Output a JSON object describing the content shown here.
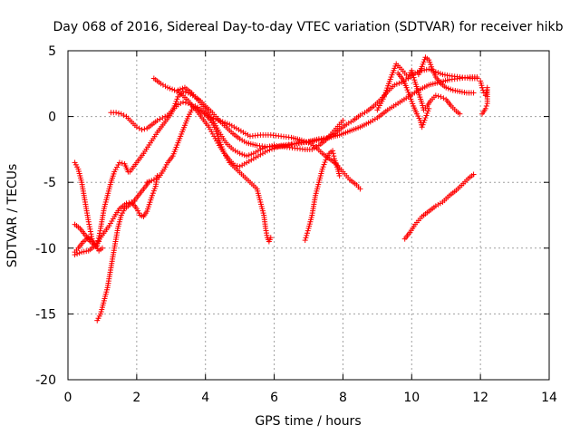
{
  "chart_data": {
    "type": "scatter",
    "title": "Day 068 of 2016, Sidereal Day-to-day VTEC variation (SDTVAR) for receiver hikb",
    "xlabel": "GPS time / hours",
    "ylabel": "SDTVAR / TECUs",
    "xlim": [
      0,
      14
    ],
    "ylim": [
      -20,
      5
    ],
    "xticks": [
      0,
      2,
      4,
      6,
      8,
      10,
      12,
      14
    ],
    "yticks": [
      -20,
      -15,
      -10,
      -5,
      0,
      5
    ],
    "grid": true,
    "colors": {
      "series": "#ff0000",
      "grid": "#a0a0a0"
    },
    "marker": "plus",
    "series": [
      {
        "points": [
          [
            0.2,
            -10.3
          ],
          [
            0.3,
            -10.0
          ],
          [
            0.45,
            -9.5
          ],
          [
            0.6,
            -9.2
          ],
          [
            0.75,
            -9.6
          ],
          [
            0.9,
            -10.2
          ],
          [
            1.0,
            -10.0
          ]
        ]
      },
      {
        "points": [
          [
            0.2,
            -3.5
          ],
          [
            0.3,
            -4.0
          ],
          [
            0.4,
            -5.0
          ],
          [
            0.5,
            -6.5
          ],
          [
            0.6,
            -8.0
          ],
          [
            0.7,
            -9.3
          ],
          [
            0.8,
            -9.8
          ]
        ]
      },
      {
        "points": [
          [
            0.2,
            -8.2
          ],
          [
            0.35,
            -8.5
          ],
          [
            0.5,
            -9.0
          ],
          [
            0.65,
            -9.5
          ],
          [
            0.8,
            -9.8
          ],
          [
            0.9,
            -9.5
          ]
        ]
      },
      {
        "points": [
          [
            0.85,
            -15.5
          ],
          [
            0.95,
            -15.0
          ],
          [
            1.05,
            -14.0
          ],
          [
            1.15,
            -13.0
          ],
          [
            1.25,
            -11.5
          ],
          [
            1.35,
            -10.0
          ],
          [
            1.45,
            -8.5
          ],
          [
            1.55,
            -7.5
          ],
          [
            1.65,
            -7.0
          ],
          [
            1.75,
            -6.8
          ],
          [
            1.9,
            -6.5
          ],
          [
            2.05,
            -6.0
          ],
          [
            2.2,
            -5.5
          ],
          [
            2.35,
            -5.0
          ]
        ]
      },
      {
        "points": [
          [
            0.2,
            -10.5
          ],
          [
            0.4,
            -10.3
          ],
          [
            0.6,
            -10.2
          ],
          [
            0.8,
            -9.8
          ],
          [
            1.0,
            -9.0
          ],
          [
            1.2,
            -8.3
          ],
          [
            1.35,
            -7.6
          ],
          [
            1.5,
            -7.0
          ],
          [
            1.7,
            -6.6
          ],
          [
            1.85,
            -6.5
          ],
          [
            2.0,
            -7.0
          ],
          [
            2.1,
            -7.5
          ],
          [
            2.2,
            -7.6
          ],
          [
            2.3,
            -7.2
          ],
          [
            2.45,
            -6.0
          ],
          [
            2.55,
            -5.3
          ],
          [
            2.6,
            -4.5
          ]
        ]
      },
      {
        "points": [
          [
            0.85,
            -9.8
          ],
          [
            0.95,
            -8.5
          ],
          [
            1.05,
            -7.0
          ],
          [
            1.15,
            -6.0
          ],
          [
            1.25,
            -5.0
          ],
          [
            1.35,
            -4.2
          ],
          [
            1.5,
            -3.5
          ],
          [
            1.65,
            -3.6
          ],
          [
            1.75,
            -4.2
          ]
        ]
      },
      {
        "points": [
          [
            1.8,
            -4.2
          ],
          [
            2.0,
            -3.5
          ],
          [
            2.2,
            -2.8
          ],
          [
            2.4,
            -2.0
          ],
          [
            2.6,
            -1.2
          ],
          [
            2.8,
            -0.5
          ],
          [
            3.0,
            0.2
          ],
          [
            3.1,
            0.8
          ],
          [
            3.2,
            1.5
          ],
          [
            3.35,
            1.9
          ],
          [
            3.5,
            1.8
          ],
          [
            3.7,
            1.5
          ],
          [
            3.85,
            1.2
          ],
          [
            4.0,
            0.8
          ],
          [
            4.2,
            0.3
          ],
          [
            4.4,
            -0.3
          ],
          [
            4.6,
            -0.8
          ],
          [
            4.8,
            -1.3
          ],
          [
            5.0,
            -1.7
          ],
          [
            5.2,
            -2.0
          ],
          [
            5.5,
            -2.2
          ],
          [
            5.8,
            -2.3
          ],
          [
            6.1,
            -2.3
          ],
          [
            6.4,
            -2.2
          ],
          [
            6.7,
            -2.0
          ],
          [
            7.0,
            -1.9
          ],
          [
            7.3,
            -1.7
          ],
          [
            7.6,
            -1.6
          ],
          [
            7.9,
            -1.4
          ],
          [
            8.2,
            -1.1
          ],
          [
            8.5,
            -0.8
          ],
          [
            8.8,
            -0.4
          ],
          [
            9.0,
            -0.1
          ],
          [
            9.3,
            0.5
          ],
          [
            9.6,
            1.0
          ],
          [
            9.9,
            1.5
          ],
          [
            10.2,
            2.0
          ],
          [
            10.5,
            2.4
          ],
          [
            10.8,
            2.6
          ],
          [
            11.1,
            2.8
          ],
          [
            11.4,
            2.9
          ],
          [
            11.7,
            3.0
          ],
          [
            11.9,
            3.0
          ]
        ]
      },
      {
        "points": [
          [
            2.5,
            2.9
          ],
          [
            2.7,
            2.5
          ],
          [
            2.9,
            2.2
          ],
          [
            3.1,
            2.0
          ],
          [
            3.3,
            1.7
          ],
          [
            3.5,
            1.2
          ],
          [
            3.7,
            0.6
          ],
          [
            3.9,
            -0.1
          ],
          [
            4.1,
            -0.8
          ],
          [
            4.25,
            -1.5
          ],
          [
            4.4,
            -2.2
          ],
          [
            4.55,
            -2.8
          ],
          [
            4.7,
            -3.3
          ],
          [
            4.85,
            -3.7
          ],
          [
            5.0,
            -3.8
          ],
          [
            5.2,
            -3.5
          ],
          [
            5.4,
            -3.2
          ],
          [
            5.6,
            -2.9
          ],
          [
            5.8,
            -2.6
          ],
          [
            6.0,
            -2.4
          ],
          [
            6.2,
            -2.2
          ],
          [
            6.5,
            -2.1
          ],
          [
            6.8,
            -2.0
          ],
          [
            7.1,
            -1.9
          ],
          [
            7.3,
            -1.8
          ],
          [
            7.5,
            -1.7
          ],
          [
            7.7,
            -1.4
          ],
          [
            7.9,
            -1.0
          ],
          [
            8.1,
            -0.6
          ],
          [
            8.3,
            -0.3
          ],
          [
            8.5,
            0.1
          ],
          [
            8.7,
            0.4
          ],
          [
            8.9,
            0.8
          ],
          [
            9.1,
            1.3
          ],
          [
            9.3,
            1.9
          ],
          [
            9.5,
            2.4
          ],
          [
            9.7,
            2.6
          ],
          [
            9.9,
            2.9
          ],
          [
            10.1,
            3.3
          ],
          [
            10.3,
            3.5
          ],
          [
            10.5,
            3.6
          ],
          [
            10.7,
            3.4
          ],
          [
            10.9,
            3.2
          ],
          [
            11.1,
            3.1
          ],
          [
            11.4,
            3.0
          ],
          [
            11.7,
            2.9
          ],
          [
            11.9,
            2.9
          ]
        ]
      },
      {
        "points": [
          [
            1.25,
            0.3
          ],
          [
            1.4,
            0.3
          ],
          [
            1.55,
            0.2
          ],
          [
            1.7,
            0.0
          ],
          [
            1.85,
            -0.4
          ],
          [
            2.0,
            -0.8
          ],
          [
            2.15,
            -1.0
          ],
          [
            2.3,
            -0.9
          ],
          [
            2.45,
            -0.6
          ],
          [
            2.6,
            -0.3
          ],
          [
            2.75,
            -0.1
          ],
          [
            2.9,
            0.1
          ],
          [
            3.05,
            0.5
          ],
          [
            3.2,
            0.9
          ],
          [
            3.35,
            1.1
          ],
          [
            3.5,
            1.0
          ],
          [
            3.7,
            0.7
          ],
          [
            3.9,
            0.3
          ],
          [
            4.1,
            0.0
          ],
          [
            4.3,
            -0.2
          ],
          [
            4.5,
            -0.4
          ],
          [
            4.7,
            -0.6
          ],
          [
            4.9,
            -0.9
          ],
          [
            5.1,
            -1.2
          ],
          [
            5.3,
            -1.5
          ],
          [
            5.6,
            -1.4
          ],
          [
            5.9,
            -1.4
          ],
          [
            6.2,
            -1.5
          ],
          [
            6.5,
            -1.6
          ],
          [
            6.8,
            -1.8
          ],
          [
            7.0,
            -2.0
          ],
          [
            7.2,
            -2.3
          ],
          [
            7.4,
            -2.8
          ],
          [
            7.6,
            -3.2
          ],
          [
            7.8,
            -3.6
          ],
          [
            8.0,
            -4.2
          ],
          [
            8.2,
            -4.8
          ],
          [
            8.4,
            -5.2
          ],
          [
            8.5,
            -5.5
          ]
        ]
      },
      {
        "points": [
          [
            2.3,
            -5.0
          ],
          [
            2.5,
            -4.8
          ],
          [
            2.65,
            -4.6
          ],
          [
            2.8,
            -4.0
          ],
          [
            2.9,
            -3.5
          ],
          [
            3.05,
            -3.0
          ],
          [
            3.2,
            -2.0
          ],
          [
            3.35,
            -1.0
          ],
          [
            3.5,
            0.0
          ],
          [
            3.6,
            0.5
          ],
          [
            3.7,
            0.8
          ],
          [
            3.85,
            0.6
          ],
          [
            4.0,
            0.2
          ],
          [
            4.15,
            -0.3
          ],
          [
            4.3,
            -1.0
          ],
          [
            4.4,
            -1.8
          ],
          [
            4.55,
            -2.8
          ],
          [
            4.7,
            -3.5
          ],
          [
            4.9,
            -4.0
          ],
          [
            5.1,
            -4.5
          ],
          [
            5.3,
            -5.0
          ],
          [
            5.5,
            -5.5
          ],
          [
            5.6,
            -6.5
          ],
          [
            5.7,
            -7.5
          ],
          [
            5.75,
            -8.5
          ],
          [
            5.8,
            -9.2
          ],
          [
            5.85,
            -9.5
          ],
          [
            5.9,
            -9.2
          ]
        ]
      },
      {
        "points": [
          [
            3.2,
            2.0
          ],
          [
            3.4,
            2.2
          ],
          [
            3.6,
            1.8
          ],
          [
            3.8,
            1.2
          ],
          [
            4.0,
            0.6
          ],
          [
            4.2,
            -0.2
          ],
          [
            4.4,
            -1.2
          ],
          [
            4.6,
            -2.0
          ],
          [
            4.8,
            -2.5
          ],
          [
            5.0,
            -2.8
          ],
          [
            5.2,
            -3.0
          ],
          [
            5.4,
            -2.8
          ],
          [
            5.6,
            -2.5
          ],
          [
            5.8,
            -2.3
          ],
          [
            6.0,
            -2.2
          ],
          [
            6.3,
            -2.3
          ],
          [
            6.6,
            -2.4
          ],
          [
            6.9,
            -2.5
          ],
          [
            7.1,
            -2.5
          ],
          [
            7.3,
            -2.2
          ],
          [
            7.5,
            -1.8
          ],
          [
            7.7,
            -1.2
          ],
          [
            7.9,
            -0.6
          ],
          [
            8.0,
            -0.3
          ]
        ]
      },
      {
        "points": [
          [
            6.9,
            -9.4
          ],
          [
            7.0,
            -8.5
          ],
          [
            7.1,
            -7.5
          ],
          [
            7.2,
            -6.0
          ],
          [
            7.3,
            -5.0
          ],
          [
            7.4,
            -4.0
          ],
          [
            7.5,
            -3.3
          ],
          [
            7.6,
            -2.8
          ],
          [
            7.7,
            -2.6
          ],
          [
            7.75,
            -3.2
          ],
          [
            7.85,
            -4.0
          ],
          [
            7.9,
            -4.5
          ]
        ]
      },
      {
        "points": [
          [
            9.8,
            -9.3
          ],
          [
            9.95,
            -8.8
          ],
          [
            10.1,
            -8.2
          ],
          [
            10.3,
            -7.6
          ],
          [
            10.5,
            -7.2
          ],
          [
            10.7,
            -6.8
          ],
          [
            10.9,
            -6.5
          ],
          [
            11.1,
            -6.0
          ],
          [
            11.3,
            -5.6
          ],
          [
            11.5,
            -5.1
          ],
          [
            11.65,
            -4.7
          ],
          [
            11.8,
            -4.4
          ]
        ]
      },
      {
        "points": [
          [
            9.0,
            0.5
          ],
          [
            9.2,
            1.5
          ],
          [
            9.4,
            3.0
          ],
          [
            9.55,
            4.0
          ],
          [
            9.7,
            3.6
          ],
          [
            9.9,
            3.0
          ],
          [
            10.0,
            3.5
          ],
          [
            10.1,
            2.6
          ],
          [
            10.2,
            1.8
          ],
          [
            10.3,
            1.0
          ],
          [
            10.35,
            0.5
          ],
          [
            10.45,
            0.8
          ],
          [
            10.55,
            1.2
          ],
          [
            10.7,
            1.6
          ],
          [
            10.85,
            1.5
          ],
          [
            11.0,
            1.3
          ],
          [
            11.15,
            0.8
          ],
          [
            11.3,
            0.4
          ],
          [
            11.4,
            0.2
          ]
        ]
      },
      {
        "points": [
          [
            9.6,
            3.3
          ],
          [
            9.75,
            2.8
          ],
          [
            9.85,
            2.2
          ],
          [
            9.95,
            1.5
          ],
          [
            10.05,
            0.8
          ],
          [
            10.15,
            0.2
          ],
          [
            10.25,
            -0.3
          ],
          [
            10.3,
            -0.8
          ],
          [
            10.4,
            -0.1
          ],
          [
            10.5,
            0.6
          ]
        ]
      },
      {
        "points": [
          [
            10.2,
            3.2
          ],
          [
            10.3,
            3.8
          ],
          [
            10.4,
            4.5
          ],
          [
            10.5,
            4.3
          ],
          [
            10.6,
            3.6
          ],
          [
            10.7,
            3.0
          ],
          [
            10.85,
            2.5
          ],
          [
            11.0,
            2.2
          ],
          [
            11.2,
            2.0
          ],
          [
            11.4,
            1.9
          ],
          [
            11.6,
            1.8
          ],
          [
            11.8,
            1.8
          ]
        ]
      },
      {
        "points": [
          [
            12.0,
            2.7
          ],
          [
            12.05,
            2.2
          ],
          [
            12.1,
            1.8
          ],
          [
            12.15,
            1.6
          ],
          [
            12.2,
            2.2
          ],
          [
            12.2,
            1.0
          ],
          [
            12.15,
            0.6
          ],
          [
            12.05,
            0.2
          ]
        ]
      }
    ]
  }
}
